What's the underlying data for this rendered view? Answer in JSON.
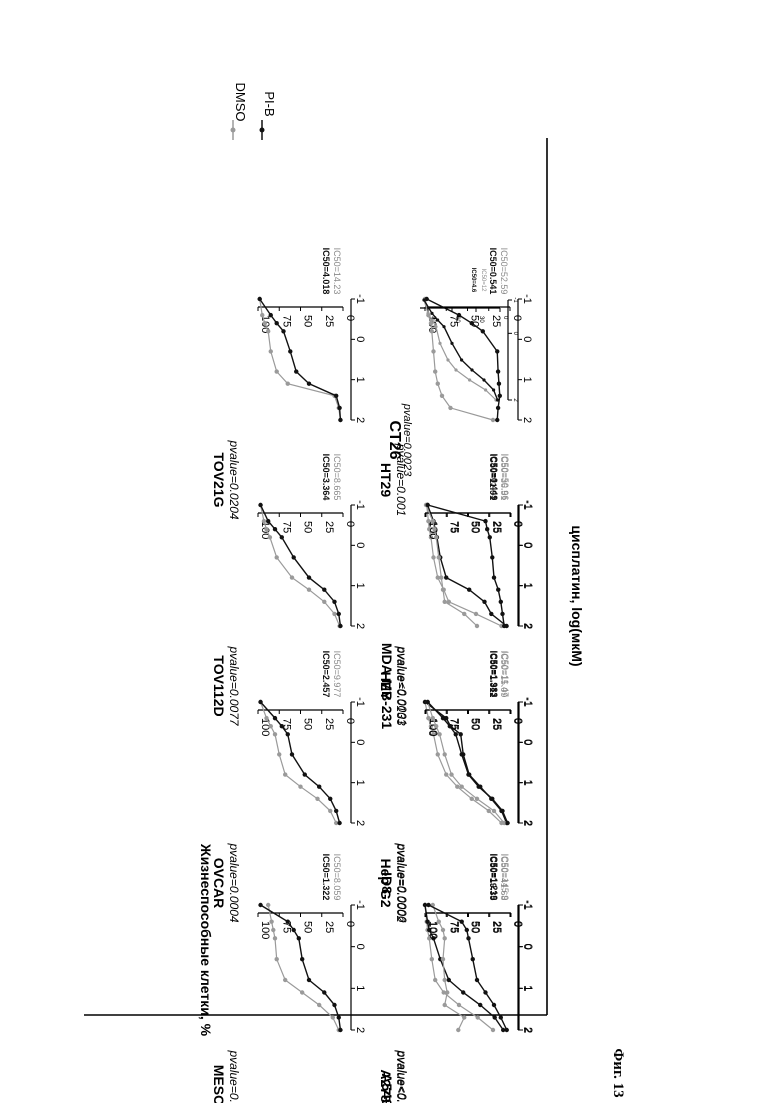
{
  "figure": {
    "caption": "Фиг. 13",
    "y_label": "Жизнеспособные клетки, %",
    "x_label": "цисплатин, log(мкМ)",
    "legend": [
      {
        "name": "DMSO",
        "color": "#9a9a9a"
      },
      {
        "name": "PI-B",
        "color": "#111111"
      }
    ]
  },
  "colors": {
    "dmso": "#9a9a9a",
    "pib": "#111111"
  },
  "chart_data": [
    {
      "type": "line",
      "title": "MESOV",
      "pvalue": "pvalue=0.0003",
      "ic50": [
        "IC50=1.322",
        "IC50=8.059"
      ],
      "ylim": [
        0,
        100
      ],
      "xlim": [
        -1,
        2
      ],
      "yticks": [
        "100",
        "75",
        "50",
        "25",
        "0"
      ],
      "xticks": [
        "-1",
        "0",
        "1",
        "2"
      ],
      "series": [
        {
          "name": "DMSO",
          "x": [
            -1,
            -0.6,
            -0.4,
            -0.2,
            0.3,
            0.8,
            1.1,
            1.4,
            1.7,
            2.0
          ],
          "y": [
            88,
            84,
            82,
            80,
            78,
            68,
            48,
            28,
            12,
            5
          ]
        },
        {
          "name": "PI-B",
          "x": [
            -1,
            -0.6,
            -0.4,
            -0.2,
            0.3,
            0.8,
            1.1,
            1.4,
            1.7,
            2.0
          ],
          "y": [
            97,
            65,
            58,
            52,
            48,
            40,
            22,
            10,
            5,
            3
          ]
        }
      ]
    },
    {
      "type": "line",
      "title": "OVCAR",
      "pvalue": "pvalue=0.0004",
      "ic50": [
        "IC50=2.457",
        "IC50=9.977"
      ],
      "ylim": [
        0,
        100
      ],
      "xlim": [
        -1,
        2
      ],
      "yticks": [
        "100",
        "75",
        "50",
        "25",
        "0"
      ],
      "xticks": [
        "-1",
        "0",
        "1",
        "2"
      ],
      "series": [
        {
          "name": "DMSO",
          "x": [
            -1,
            -0.6,
            -0.4,
            -0.2,
            0.3,
            0.8,
            1.1,
            1.4,
            1.7,
            2.0
          ],
          "y": [
            97,
            90,
            85,
            80,
            75,
            68,
            50,
            30,
            15,
            8
          ]
        },
        {
          "name": "PI-B",
          "x": [
            -1,
            -0.6,
            -0.4,
            -0.2,
            0.3,
            0.8,
            1.1,
            1.4,
            1.7,
            2.0
          ],
          "y": [
            97,
            80,
            72,
            65,
            60,
            45,
            28,
            15,
            8,
            4
          ]
        }
      ]
    },
    {
      "type": "line",
      "title": "TOV112D",
      "pvalue": "pvalue=0.0077",
      "ic50": [
        "IC50=3.364",
        "IC50=8.665"
      ],
      "ylim": [
        0,
        100
      ],
      "xlim": [
        -1,
        2
      ],
      "yticks": [
        "100",
        "75",
        "50",
        "25",
        "0"
      ],
      "xticks": [
        "-1",
        "0",
        "1",
        "2"
      ],
      "series": [
        {
          "name": "DMSO",
          "x": [
            -1,
            -0.6,
            -0.4,
            -0.2,
            0.3,
            0.8,
            1.1,
            1.4,
            1.7,
            2.0
          ],
          "y": [
            97,
            93,
            90,
            86,
            78,
            60,
            40,
            22,
            10,
            4
          ]
        },
        {
          "name": "PI-B",
          "x": [
            -1,
            -0.6,
            -0.4,
            -0.2,
            0.3,
            0.8,
            1.1,
            1.4,
            1.7,
            2.0
          ],
          "y": [
            97,
            88,
            80,
            72,
            58,
            40,
            22,
            10,
            5,
            3
          ]
        }
      ]
    },
    {
      "type": "line",
      "title": "TOV21G",
      "pvalue": "pvalue=0.0204",
      "ic50": [
        "IC50=4.018",
        "IC50=14.23"
      ],
      "ylim": [
        0,
        100
      ],
      "xlim": [
        -1,
        2
      ],
      "yticks": [
        "100",
        "75",
        "50",
        "25",
        "0"
      ],
      "xticks": [
        "-1",
        "0",
        "1",
        "2"
      ],
      "series": [
        {
          "name": "DMSO",
          "x": [
            -1,
            -0.6,
            -0.4,
            -0.2,
            0.3,
            0.8,
            1.1,
            1.4,
            1.7,
            2.0
          ],
          "y": [
            98,
            95,
            92,
            88,
            85,
            78,
            65,
            10,
            5,
            3
          ]
        },
        {
          "name": "PI-B",
          "x": [
            -1,
            -0.6,
            -0.4,
            -0.2,
            0.3,
            0.8,
            1.1,
            1.4,
            1.7,
            2.0
          ],
          "y": [
            98,
            85,
            78,
            70,
            62,
            55,
            40,
            8,
            4,
            3
          ]
        }
      ]
    },
    {
      "type": "line",
      "title": "A2780",
      "pvalue": "pvalue<0.0001",
      "ic50": [
        "IC50=19.35",
        "IC50=41.68"
      ],
      "ylim": [
        0,
        100
      ],
      "xlim": [
        -1,
        2
      ],
      "yticks": [
        "100",
        "75",
        "50",
        "25",
        "0"
      ],
      "xticks": [
        "-1",
        "0",
        "1",
        "2"
      ],
      "series": [
        {
          "name": "DMSO",
          "x": [
            -1,
            -0.6,
            -0.4,
            -0.2,
            0.3,
            0.8,
            1.1,
            1.4,
            1.7,
            2.0
          ],
          "y": [
            100,
            98,
            97,
            95,
            92,
            88,
            78,
            60,
            38,
            20
          ]
        },
        {
          "name": "PI-B",
          "x": [
            -1,
            -0.6,
            -0.4,
            -0.2,
            0.3,
            0.8,
            1.1,
            1.4,
            1.7,
            2.0
          ],
          "y": [
            100,
            97,
            95,
            90,
            82,
            72,
            55,
            35,
            18,
            8
          ]
        }
      ]
    },
    {
      "type": "line",
      "title": "Hep G2",
      "pvalue": "pvalue=0.0002",
      "ic50": [
        "IC50=1.312",
        "IC50=15.09"
      ],
      "ylim": [
        0,
        100
      ],
      "xlim": [
        -1,
        2
      ],
      "yticks": [
        "100",
        "75",
        "50",
        "25",
        "0"
      ],
      "xticks": [
        "-1",
        "0",
        "1",
        "2"
      ],
      "series": [
        {
          "name": "DMSO",
          "x": [
            -1,
            -0.6,
            -0.4,
            -0.2,
            0.3,
            0.8,
            1.1,
            1.4,
            1.7,
            2.0
          ],
          "y": [
            100,
            96,
            93,
            90,
            85,
            75,
            62,
            45,
            25,
            10
          ]
        },
        {
          "name": "PI-B",
          "x": [
            -1,
            -0.6,
            -0.4,
            -0.2,
            0.3,
            0.8,
            1.1,
            1.4,
            1.7,
            2.0
          ],
          "y": [
            100,
            75,
            70,
            58,
            55,
            48,
            35,
            22,
            10,
            4
          ]
        }
      ]
    },
    {
      "type": "line",
      "title": "HEY",
      "pvalue": "pvalue=0.0133",
      "ic50": [
        "IC50=11.91",
        "IC50=36.51"
      ],
      "ylim": [
        0,
        100
      ],
      "xlim": [
        -1,
        2
      ],
      "yticks": [
        "100",
        "75",
        "50",
        "25",
        "0"
      ],
      "xticks": [
        "-1",
        "0",
        "1",
        "2"
      ],
      "series": [
        {
          "name": "DMSO",
          "x": [
            -1,
            -0.6,
            -0.4,
            -0.2,
            0.3,
            0.8,
            1.1,
            1.4,
            1.7,
            2.0
          ],
          "y": [
            98,
            96,
            95,
            93,
            90,
            85,
            78,
            72,
            40,
            10
          ]
        },
        {
          "name": "PI-B",
          "x": [
            -1,
            -0.6,
            -0.4,
            -0.2,
            0.3,
            0.8,
            1.1,
            1.4,
            1.7,
            2.0
          ],
          "y": [
            97,
            90,
            88,
            86,
            82,
            75,
            48,
            30,
            22,
            4
          ]
        }
      ]
    },
    {
      "type": "line",
      "title": "HT29",
      "pvalue": "pvalue=0.001",
      "ic50": [
        "IC50=0.541",
        "IC50=52.59"
      ],
      "ylim": [
        0,
        100
      ],
      "xlim": [
        -1,
        2
      ],
      "yticks": [
        "100",
        "75",
        "50",
        "25",
        "0"
      ],
      "xticks": [
        "-1",
        "0",
        "1",
        "2"
      ],
      "series": [
        {
          "name": "DMSO",
          "x": [
            -1,
            -0.6,
            -0.4,
            -0.2,
            0.3,
            0.8,
            1.1,
            1.4,
            1.7,
            2.0
          ],
          "y": [
            100,
            96,
            93,
            92,
            90,
            88,
            85,
            80,
            70,
            20
          ]
        },
        {
          "name": "PI-B",
          "x": [
            -1,
            -0.6,
            -0.4,
            -0.2,
            0.3,
            0.8,
            1.1,
            1.4,
            1.7,
            2.0
          ],
          "y": [
            98,
            60,
            45,
            32,
            15,
            14,
            13,
            12,
            14,
            15
          ]
        }
      ]
    },
    {
      "type": "line",
      "title": "A549",
      "pvalue": "pvalue<0.0001",
      "ic50": [
        "IC50=1.219",
        "IC50=145.9"
      ],
      "ylim": [
        0,
        100
      ],
      "xlim": [
        -1,
        2
      ],
      "yticks": [
        "100",
        "75",
        "50",
        "25",
        "0"
      ],
      "xticks": [
        "-1",
        "0",
        "1",
        "2"
      ],
      "series": [
        {
          "name": "DMSO",
          "x": [
            -1,
            -0.6,
            -0.4,
            -0.2,
            0.3,
            0.8,
            1.1,
            1.4,
            1.7,
            2.0
          ],
          "y": [
            92,
            85,
            80,
            78,
            80,
            78,
            75,
            78,
            55,
            62
          ]
        },
        {
          "name": "PI-B",
          "x": [
            -1,
            -0.6,
            -0.4,
            -0.2,
            0.3,
            0.8,
            1.1,
            1.4,
            1.7,
            2.0
          ],
          "y": [
            97,
            58,
            52,
            50,
            45,
            40,
            30,
            20,
            12,
            5
          ]
        }
      ]
    },
    {
      "type": "line",
      "title": "ID8",
      "pvalue": "pvalue=0.0006",
      "ic50": [
        "IC50=1.983",
        "IC50=11.47"
      ],
      "ylim": [
        0,
        100
      ],
      "xlim": [
        -1,
        2
      ],
      "yticks": [
        "100",
        "75",
        "50",
        "25",
        "0"
      ],
      "xticks": [
        "-1",
        "0",
        "1",
        "2"
      ],
      "series": [
        {
          "name": "DMSO",
          "x": [
            -1,
            -0.6,
            -0.4,
            -0.2,
            0.3,
            0.8,
            1.1,
            1.4,
            1.7,
            2.0
          ],
          "y": [
            98,
            92,
            88,
            84,
            78,
            70,
            58,
            40,
            20,
            8
          ]
        },
        {
          "name": "PI-B",
          "x": [
            -1,
            -0.6,
            -0.4,
            -0.2,
            0.3,
            0.8,
            1.1,
            1.4,
            1.7,
            2.0
          ],
          "y": [
            98,
            80,
            72,
            65,
            58,
            50,
            38,
            22,
            10,
            4
          ]
        }
      ]
    },
    {
      "type": "line",
      "title": "MDA-MB-231",
      "pvalue": "pvalue<0.0001",
      "ic50": [
        "IC50=0.449",
        "IC50=50.96"
      ],
      "ylim": [
        0,
        100
      ],
      "xlim": [
        -1,
        2
      ],
      "yticks": [
        "100",
        "75",
        "50",
        "25",
        "0"
      ],
      "xticks": [
        "-1",
        "0",
        "1",
        "2"
      ],
      "series": [
        {
          "name": "DMSO",
          "x": [
            -1,
            -0.6,
            -0.4,
            -0.2,
            0.3,
            0.8,
            1.1,
            1.4,
            1.7,
            2.0
          ],
          "y": [
            100,
            92,
            90,
            88,
            85,
            82,
            80,
            78,
            55,
            40
          ]
        },
        {
          "name": "PI-B",
          "x": [
            -1,
            -0.6,
            -0.4,
            -0.2,
            0.3,
            0.8,
            1.1,
            1.4,
            1.7,
            2.0
          ],
          "y": [
            98,
            30,
            28,
            25,
            22,
            20,
            15,
            12,
            10,
            8
          ]
        }
      ]
    },
    {
      "type": "line",
      "title": "CT26",
      "pvalue": "pvalue=0.0023",
      "ic50": [
        "IC50=4.6",
        "IC50=12"
      ],
      "ylim": [
        0,
        100
      ],
      "xlim": [
        -1,
        2
      ],
      "yticks": [
        "90",
        "60",
        "30",
        "0"
      ],
      "xticks": [
        "-1",
        "0",
        "2"
      ],
      "series": [
        {
          "name": "DMSO",
          "x": [
            -1,
            -0.6,
            -0.4,
            -0.2,
            0.3,
            0.8,
            1.1,
            1.4,
            1.7,
            2.0
          ],
          "y": [
            95,
            90,
            85,
            80,
            75,
            65,
            55,
            38,
            18,
            5
          ]
        },
        {
          "name": "PI-B",
          "x": [
            -1,
            -0.6,
            -0.4,
            -0.2,
            0.3,
            0.8,
            1.1,
            1.4,
            1.7,
            2.0
          ],
          "y": [
            95,
            85,
            78,
            70,
            60,
            48,
            35,
            20,
            8,
            3
          ]
        }
      ]
    }
  ]
}
